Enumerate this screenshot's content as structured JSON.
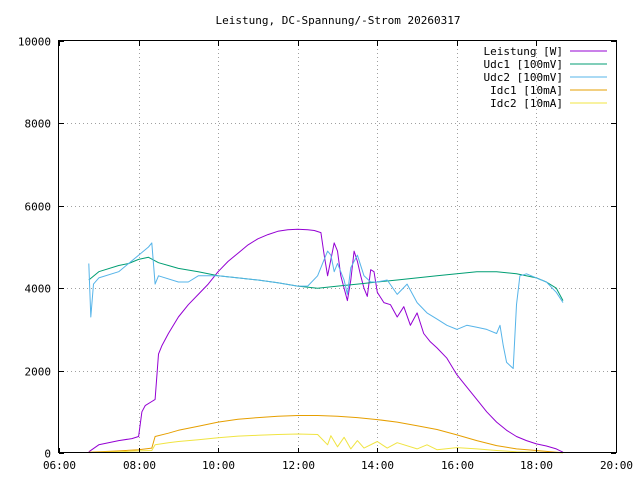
{
  "chart_data": {
    "type": "line",
    "title": "Leistung, DC-Spannung/-Strom 20260317",
    "xlabel": "",
    "ylabel": "",
    "xlim": [
      "06:00",
      "20:00"
    ],
    "ylim": [
      0,
      10000
    ],
    "x_ticks": [
      "06:00",
      "08:00",
      "10:00",
      "12:00",
      "14:00",
      "16:00",
      "18:00",
      "20:00"
    ],
    "y_ticks": [
      0,
      2000,
      4000,
      6000,
      8000,
      10000
    ],
    "grid": true,
    "legend_position": "top-right",
    "series": [
      {
        "name": "Leistung [W]",
        "color": "#9400d3",
        "points": [
          [
            "06:45",
            30
          ],
          [
            "07:00",
            200
          ],
          [
            "07:30",
            300
          ],
          [
            "07:50",
            350
          ],
          [
            "08:00",
            400
          ],
          [
            "08:05",
            1000
          ],
          [
            "08:10",
            1150
          ],
          [
            "08:20",
            1250
          ],
          [
            "08:25",
            1300
          ],
          [
            "08:30",
            2400
          ],
          [
            "08:35",
            2600
          ],
          [
            "08:45",
            2900
          ],
          [
            "09:00",
            3300
          ],
          [
            "09:15",
            3600
          ],
          [
            "09:30",
            3850
          ],
          [
            "09:45",
            4100
          ],
          [
            "10:00",
            4400
          ],
          [
            "10:15",
            4650
          ],
          [
            "10:30",
            4850
          ],
          [
            "10:45",
            5050
          ],
          [
            "11:00",
            5200
          ],
          [
            "11:15",
            5300
          ],
          [
            "11:30",
            5380
          ],
          [
            "11:45",
            5420
          ],
          [
            "12:00",
            5430
          ],
          [
            "12:15",
            5420
          ],
          [
            "12:25",
            5400
          ],
          [
            "12:35",
            5350
          ],
          [
            "12:40",
            4800
          ],
          [
            "12:45",
            4300
          ],
          [
            "12:50",
            4700
          ],
          [
            "12:55",
            5100
          ],
          [
            "13:00",
            4900
          ],
          [
            "13:05",
            4300
          ],
          [
            "13:10",
            4000
          ],
          [
            "13:15",
            3700
          ],
          [
            "13:20",
            4200
          ],
          [
            "13:25",
            4900
          ],
          [
            "13:30",
            4650
          ],
          [
            "13:35",
            4300
          ],
          [
            "13:40",
            4000
          ],
          [
            "13:45",
            3800
          ],
          [
            "13:50",
            4450
          ],
          [
            "13:55",
            4400
          ],
          [
            "14:00",
            3900
          ],
          [
            "14:10",
            3650
          ],
          [
            "14:20",
            3600
          ],
          [
            "14:30",
            3300
          ],
          [
            "14:40",
            3550
          ],
          [
            "14:50",
            3100
          ],
          [
            "15:00",
            3400
          ],
          [
            "15:10",
            2900
          ],
          [
            "15:20",
            2700
          ],
          [
            "15:30",
            2550
          ],
          [
            "15:45",
            2300
          ],
          [
            "16:00",
            1900
          ],
          [
            "16:15",
            1600
          ],
          [
            "16:30",
            1300
          ],
          [
            "16:45",
            1000
          ],
          [
            "17:00",
            750
          ],
          [
            "17:15",
            550
          ],
          [
            "17:30",
            400
          ],
          [
            "17:45",
            300
          ],
          [
            "18:00",
            220
          ],
          [
            "18:15",
            170
          ],
          [
            "18:30",
            100
          ],
          [
            "18:40",
            20
          ]
        ]
      },
      {
        "name": "Udc1 [100mV]",
        "color": "#009e73",
        "points": [
          [
            "06:45",
            4200
          ],
          [
            "07:00",
            4400
          ],
          [
            "07:30",
            4550
          ],
          [
            "07:45",
            4600
          ],
          [
            "08:00",
            4700
          ],
          [
            "08:15",
            4750
          ],
          [
            "08:30",
            4620
          ],
          [
            "08:45",
            4550
          ],
          [
            "09:00",
            4480
          ],
          [
            "09:30",
            4400
          ],
          [
            "10:00",
            4300
          ],
          [
            "10:30",
            4250
          ],
          [
            "11:00",
            4200
          ],
          [
            "11:30",
            4130
          ],
          [
            "12:00",
            4050
          ],
          [
            "12:30",
            4000
          ],
          [
            "13:00",
            4050
          ],
          [
            "13:30",
            4100
          ],
          [
            "14:00",
            4150
          ],
          [
            "14:30",
            4200
          ],
          [
            "15:00",
            4250
          ],
          [
            "15:30",
            4300
          ],
          [
            "16:00",
            4350
          ],
          [
            "16:30",
            4400
          ],
          [
            "17:00",
            4400
          ],
          [
            "17:30",
            4350
          ],
          [
            "18:00",
            4250
          ],
          [
            "18:15",
            4150
          ],
          [
            "18:30",
            4000
          ],
          [
            "18:40",
            3700
          ]
        ]
      },
      {
        "name": "Udc2 [100mV]",
        "color": "#56b4e9",
        "points": [
          [
            "06:45",
            4600
          ],
          [
            "06:48",
            3300
          ],
          [
            "06:52",
            4100
          ],
          [
            "07:00",
            4250
          ],
          [
            "07:30",
            4400
          ],
          [
            "07:45",
            4600
          ],
          [
            "08:00",
            4800
          ],
          [
            "08:15",
            5000
          ],
          [
            "08:20",
            5100
          ],
          [
            "08:25",
            4100
          ],
          [
            "08:30",
            4300
          ],
          [
            "09:00",
            4150
          ],
          [
            "09:15",
            4150
          ],
          [
            "09:30",
            4300
          ],
          [
            "10:00",
            4300
          ],
          [
            "10:30",
            4250
          ],
          [
            "11:00",
            4200
          ],
          [
            "11:30",
            4130
          ],
          [
            "12:00",
            4050
          ],
          [
            "12:15",
            4050
          ],
          [
            "12:30",
            4300
          ],
          [
            "12:40",
            4700
          ],
          [
            "12:45",
            4900
          ],
          [
            "12:50",
            4800
          ],
          [
            "12:55",
            4400
          ],
          [
            "13:00",
            4600
          ],
          [
            "13:10",
            4200
          ],
          [
            "13:15",
            3850
          ],
          [
            "13:20",
            4500
          ],
          [
            "13:30",
            4800
          ],
          [
            "13:40",
            4300
          ],
          [
            "13:50",
            4150
          ],
          [
            "14:00",
            4150
          ],
          [
            "14:15",
            4200
          ],
          [
            "14:30",
            3850
          ],
          [
            "14:45",
            4100
          ],
          [
            "15:00",
            3650
          ],
          [
            "15:15",
            3400
          ],
          [
            "15:30",
            3250
          ],
          [
            "15:45",
            3100
          ],
          [
            "16:00",
            3000
          ],
          [
            "16:15",
            3100
          ],
          [
            "16:30",
            3050
          ],
          [
            "16:45",
            3000
          ],
          [
            "17:00",
            2900
          ],
          [
            "17:05",
            3100
          ],
          [
            "17:10",
            2600
          ],
          [
            "17:15",
            2200
          ],
          [
            "17:25",
            2050
          ],
          [
            "17:30",
            3600
          ],
          [
            "17:35",
            4300
          ],
          [
            "17:45",
            4350
          ],
          [
            "18:00",
            4250
          ],
          [
            "18:15",
            4150
          ],
          [
            "18:30",
            3900
          ],
          [
            "18:40",
            3650
          ]
        ]
      },
      {
        "name": "Idc1 [10mA]",
        "color": "#e69f00",
        "points": [
          [
            "06:45",
            20
          ],
          [
            "07:30",
            50
          ],
          [
            "08:00",
            80
          ],
          [
            "08:20",
            120
          ],
          [
            "08:25",
            400
          ],
          [
            "08:45",
            480
          ],
          [
            "09:00",
            550
          ],
          [
            "09:30",
            650
          ],
          [
            "10:00",
            750
          ],
          [
            "10:30",
            820
          ],
          [
            "11:00",
            860
          ],
          [
            "11:30",
            890
          ],
          [
            "12:00",
            910
          ],
          [
            "12:30",
            910
          ],
          [
            "13:00",
            890
          ],
          [
            "13:30",
            860
          ],
          [
            "14:00",
            810
          ],
          [
            "14:30",
            750
          ],
          [
            "15:00",
            660
          ],
          [
            "15:30",
            570
          ],
          [
            "16:00",
            440
          ],
          [
            "16:30",
            300
          ],
          [
            "17:00",
            180
          ],
          [
            "17:30",
            100
          ],
          [
            "18:00",
            60
          ],
          [
            "18:30",
            20
          ],
          [
            "18:40",
            5
          ]
        ]
      },
      {
        "name": "Idc2 [10mA]",
        "color": "#f0e442",
        "points": [
          [
            "06:45",
            10
          ],
          [
            "07:30",
            30
          ],
          [
            "08:00",
            50
          ],
          [
            "08:20",
            60
          ],
          [
            "08:25",
            200
          ],
          [
            "08:45",
            250
          ],
          [
            "09:00",
            280
          ],
          [
            "09:30",
            320
          ],
          [
            "10:00",
            370
          ],
          [
            "10:30",
            410
          ],
          [
            "11:00",
            430
          ],
          [
            "11:30",
            450
          ],
          [
            "12:00",
            460
          ],
          [
            "12:30",
            450
          ],
          [
            "12:45",
            200
          ],
          [
            "12:50",
            420
          ],
          [
            "13:00",
            150
          ],
          [
            "13:10",
            380
          ],
          [
            "13:20",
            100
          ],
          [
            "13:30",
            300
          ],
          [
            "13:40",
            120
          ],
          [
            "14:00",
            280
          ],
          [
            "14:15",
            120
          ],
          [
            "14:30",
            250
          ],
          [
            "15:00",
            100
          ],
          [
            "15:15",
            200
          ],
          [
            "15:30",
            80
          ],
          [
            "16:00",
            130
          ],
          [
            "16:30",
            100
          ],
          [
            "17:00",
            60
          ],
          [
            "17:30",
            30
          ],
          [
            "18:00",
            20
          ],
          [
            "18:40",
            5
          ]
        ]
      }
    ]
  }
}
